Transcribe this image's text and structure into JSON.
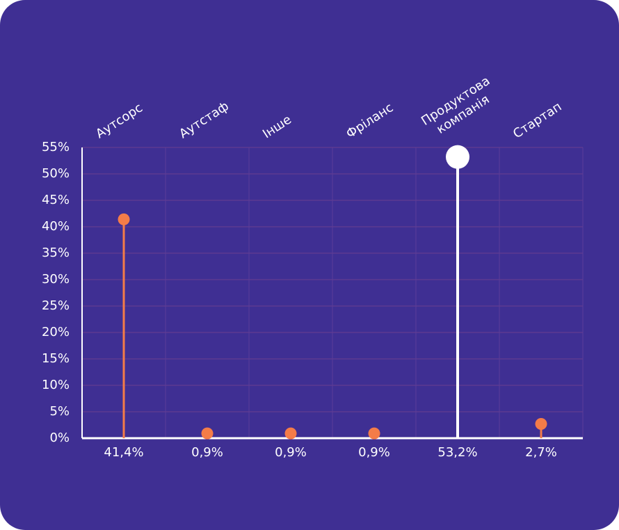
{
  "chart_data": {
    "type": "lollipop",
    "categories": [
      "Аутсорс",
      "Аутстаф",
      "Інше",
      "Фріланс",
      "Продуктова компанія",
      "Стартап"
    ],
    "values": [
      41.4,
      0.9,
      0.9,
      0.9,
      53.2,
      2.7
    ],
    "value_labels": [
      "41,4%",
      "0,9%",
      "0,9%",
      "0,9%",
      "53,2%",
      "2,7%"
    ],
    "colors": [
      "#f47c48",
      "#f47c48",
      "#f47c48",
      "#f47c48",
      "#ffffff",
      "#f47c48"
    ],
    "ylim": [
      0,
      55
    ],
    "yticks": [
      {
        "value": 0,
        "label": "0%"
      },
      {
        "value": 5,
        "label": "5%"
      },
      {
        "value": 10,
        "label": "10%"
      },
      {
        "value": 15,
        "label": "15%"
      },
      {
        "value": 20,
        "label": "20%"
      },
      {
        "value": 25,
        "label": "25%"
      },
      {
        "value": 30,
        "label": "30%"
      },
      {
        "value": 35,
        "label": "35%"
      },
      {
        "value": 40,
        "label": "40%"
      },
      {
        "value": 45,
        "label": "45%"
      },
      {
        "value": 50,
        "label": "50%"
      },
      {
        "value": 55,
        "label": "55%"
      }
    ],
    "grid": true
  }
}
